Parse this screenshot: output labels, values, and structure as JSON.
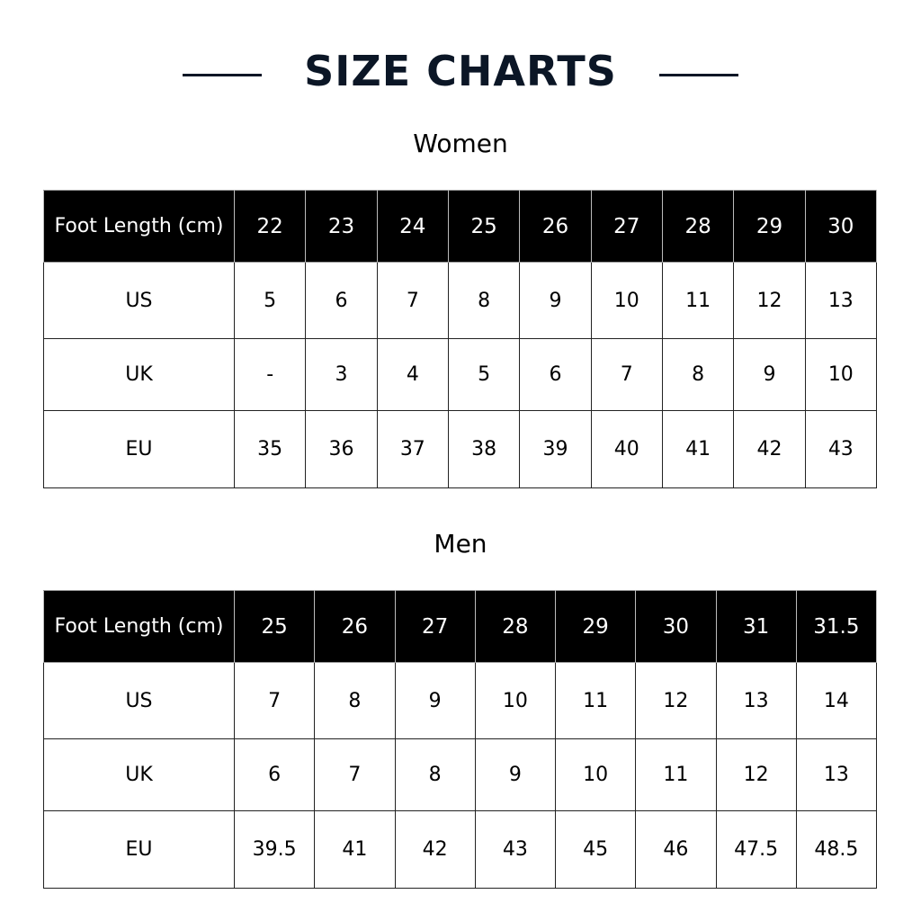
{
  "title": "SIZE CHARTS",
  "women": {
    "heading": "Women",
    "header_label": "Foot Length (cm)",
    "foot_length": [
      "22",
      "23",
      "24",
      "25",
      "26",
      "27",
      "28",
      "29",
      "30"
    ],
    "rows": [
      {
        "label": "US",
        "values": [
          "5",
          "6",
          "7",
          "8",
          "9",
          "10",
          "11",
          "12",
          "13"
        ]
      },
      {
        "label": "UK",
        "values": [
          "-",
          "3",
          "4",
          "5",
          "6",
          "7",
          "8",
          "9",
          "10"
        ]
      },
      {
        "label": "EU",
        "values": [
          "35",
          "36",
          "37",
          "38",
          "39",
          "40",
          "41",
          "42",
          "43"
        ]
      }
    ]
  },
  "men": {
    "heading": "Men",
    "header_label": "Foot Length (cm)",
    "foot_length": [
      "25",
      "26",
      "27",
      "28",
      "29",
      "30",
      "31",
      "31.5"
    ],
    "rows": [
      {
        "label": "US",
        "values": [
          "7",
          "8",
          "9",
          "10",
          "11",
          "12",
          "13",
          "14"
        ]
      },
      {
        "label": "UK",
        "values": [
          "6",
          "7",
          "8",
          "9",
          "10",
          "11",
          "12",
          "13"
        ]
      },
      {
        "label": "EU",
        "values": [
          "39.5",
          "41",
          "42",
          "43",
          "45",
          "46",
          "47.5",
          "48.5"
        ]
      }
    ]
  },
  "colors": {
    "title": "#0b1626",
    "header_bg": "#000000"
  }
}
